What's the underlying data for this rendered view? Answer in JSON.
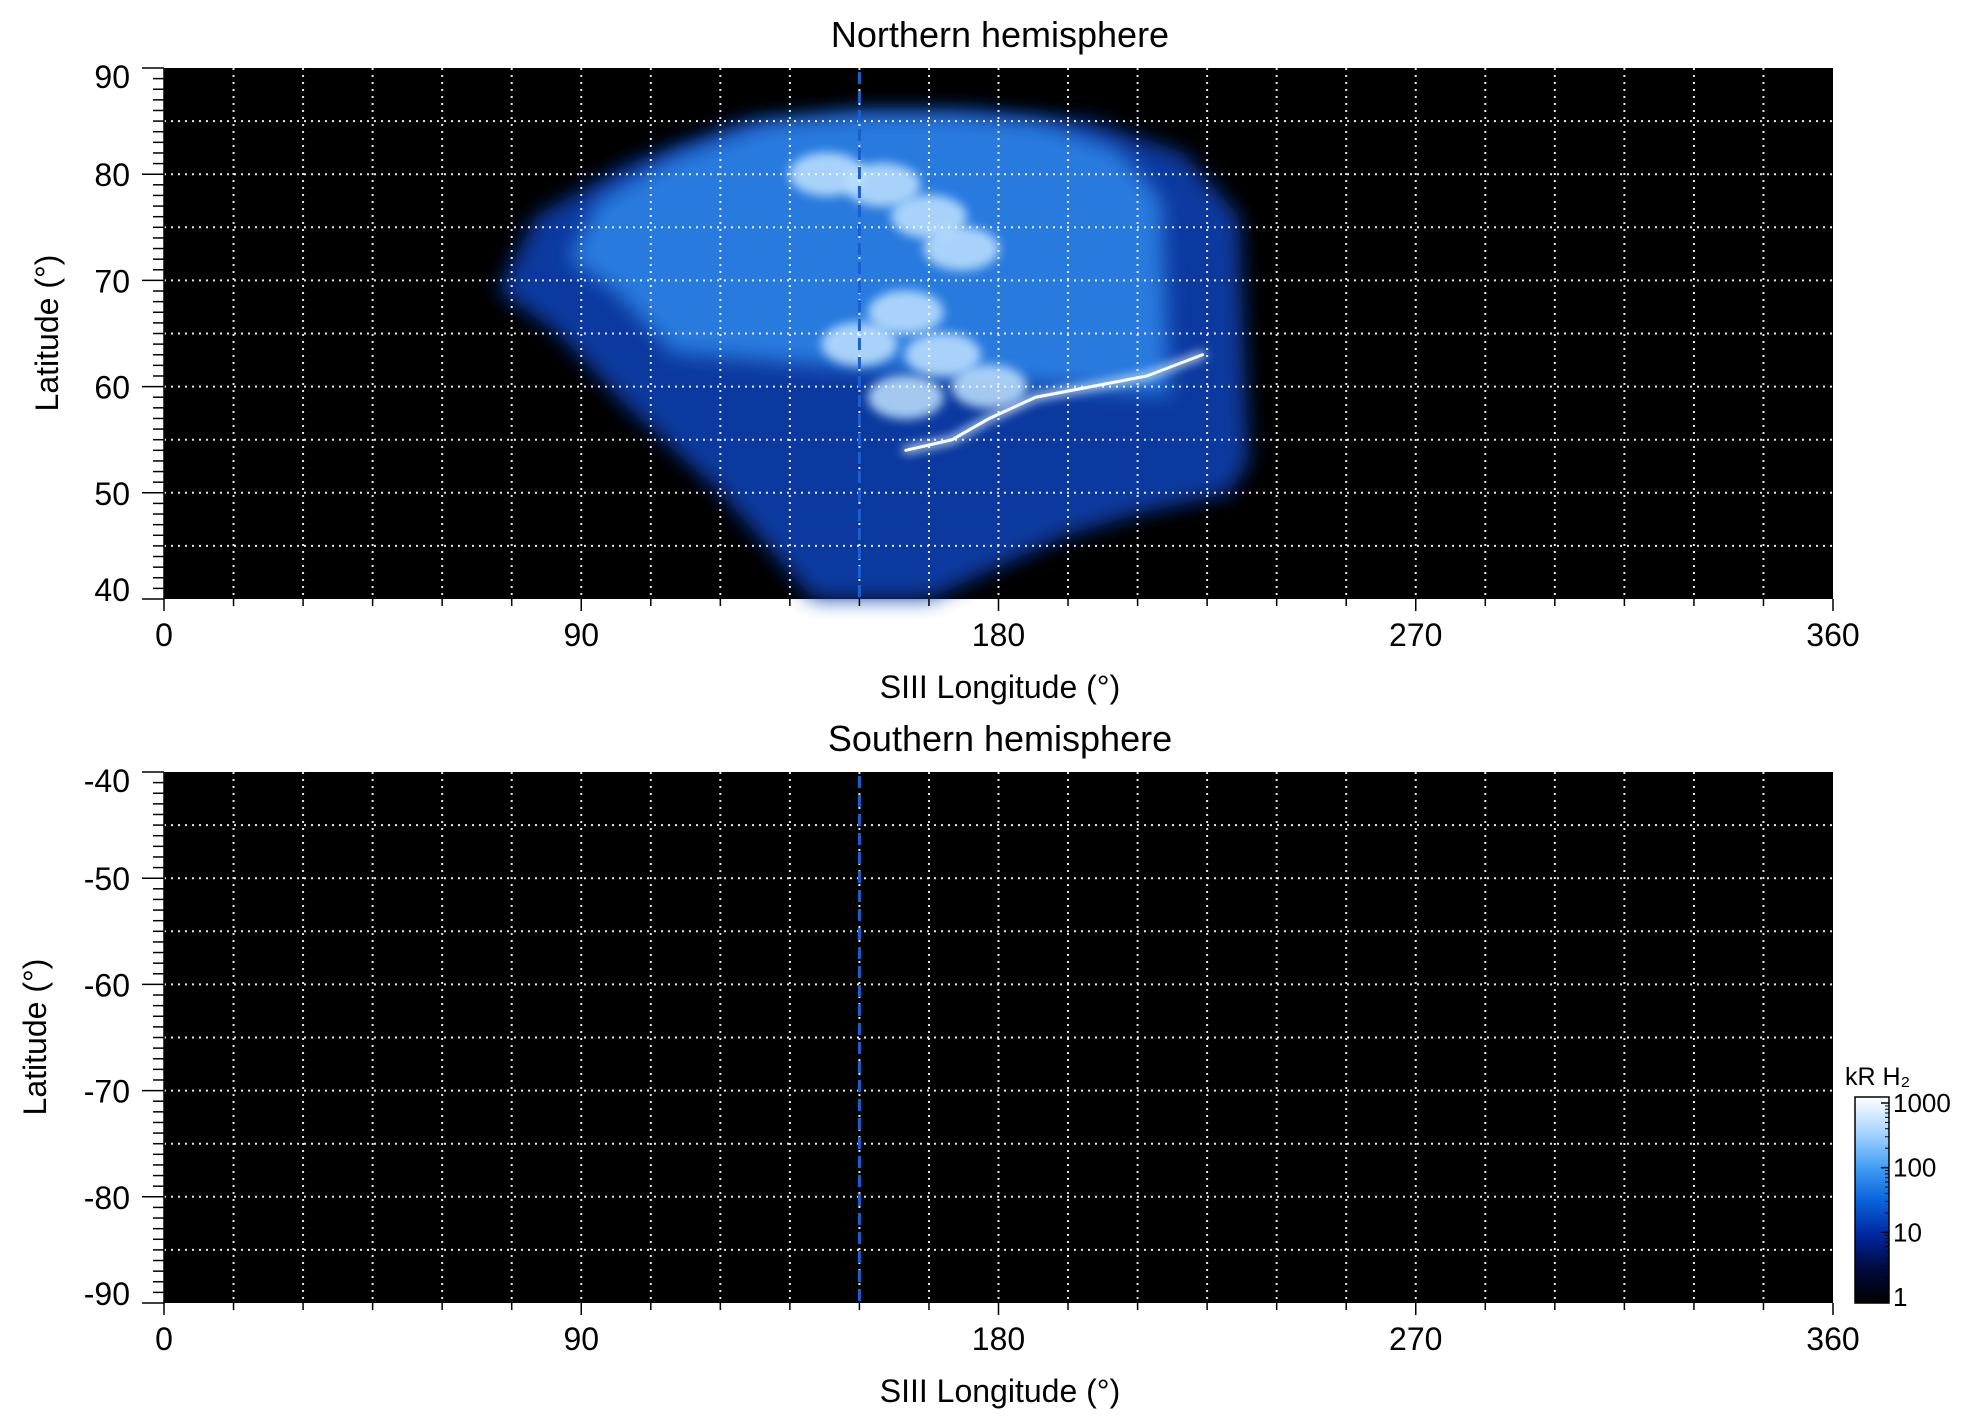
{
  "figure": {
    "colorbar": {
      "title": "kR H₂",
      "scale": "log",
      "range": [
        1,
        1000
      ],
      "tick_labels": [
        "1000",
        "100",
        "10",
        "1"
      ],
      "tick_values": [
        1000,
        100,
        10,
        1
      ],
      "colormap_stops": [
        "#000000",
        "#000a3c",
        "#0028a0",
        "#0a64dc",
        "#46a0f5",
        "#aad7ff",
        "#ffffff"
      ]
    }
  },
  "chart_data": [
    {
      "type": "heatmap",
      "title": "Northern hemisphere",
      "xlabel": "SIII Longitude (°)",
      "ylabel": "Latitude (°)",
      "xlim": [
        0,
        360
      ],
      "ylim": [
        40,
        90
      ],
      "x_tick_labels": [
        "0",
        "90",
        "180",
        "270",
        "360"
      ],
      "x_ticks": [
        0,
        90,
        180,
        270,
        360
      ],
      "y_tick_labels": [
        "90",
        "80",
        "70",
        "60",
        "50",
        "40"
      ],
      "y_ticks": [
        90,
        80,
        70,
        60,
        50,
        40
      ],
      "grid": true,
      "grid_x_spacing": 15,
      "grid_y_spacing": 5,
      "reference_line_longitude": 150,
      "reference_line_color": "#1a5fd0",
      "emission": {
        "coverage_outline": [
          [
            72,
            69
          ],
          [
            80,
            76
          ],
          [
            100,
            81
          ],
          [
            125,
            85
          ],
          [
            150,
            86
          ],
          [
            175,
            86
          ],
          [
            200,
            85
          ],
          [
            220,
            82
          ],
          [
            232,
            76
          ],
          [
            233,
            64
          ],
          [
            234,
            53
          ],
          [
            230,
            50
          ],
          [
            210,
            48
          ],
          [
            195,
            46
          ],
          [
            180,
            43
          ],
          [
            170,
            41
          ],
          [
            165,
            40
          ],
          [
            140,
            40
          ],
          [
            132,
            44
          ],
          [
            120,
            50
          ],
          [
            100,
            58
          ],
          [
            85,
            65
          ],
          [
            72,
            69
          ]
        ],
        "main_oval": [
          [
            160,
            54
          ],
          [
            170,
            55
          ],
          [
            178,
            57
          ],
          [
            188,
            59
          ],
          [
            200,
            60
          ],
          [
            212,
            61
          ],
          [
            224,
            63
          ]
        ],
        "polar_bright_spots": [
          [
            143,
            80
          ],
          [
            155,
            79
          ],
          [
            165,
            76
          ],
          [
            172,
            73
          ],
          [
            160,
            67
          ],
          [
            150,
            64
          ],
          [
            168,
            63
          ],
          [
            178,
            60
          ],
          [
            160,
            59
          ]
        ],
        "peak_brightness_kR": 1000
      }
    },
    {
      "type": "heatmap",
      "title": "Southern hemisphere",
      "xlabel": "SIII Longitude (°)",
      "ylabel": "Latitude (°)",
      "xlim": [
        0,
        360
      ],
      "ylim": [
        -90,
        -40
      ],
      "x_tick_labels": [
        "0",
        "90",
        "180",
        "270",
        "360"
      ],
      "x_ticks": [
        0,
        90,
        180,
        270,
        360
      ],
      "y_tick_labels": [
        "-40",
        "-50",
        "-60",
        "-70",
        "-80",
        "-90"
      ],
      "y_ticks": [
        -40,
        -50,
        -60,
        -70,
        -80,
        -90
      ],
      "grid": true,
      "grid_x_spacing": 15,
      "grid_y_spacing": 5,
      "reference_line_longitude": 150,
      "reference_line_color": "#1a5fd0",
      "emission": null
    }
  ]
}
